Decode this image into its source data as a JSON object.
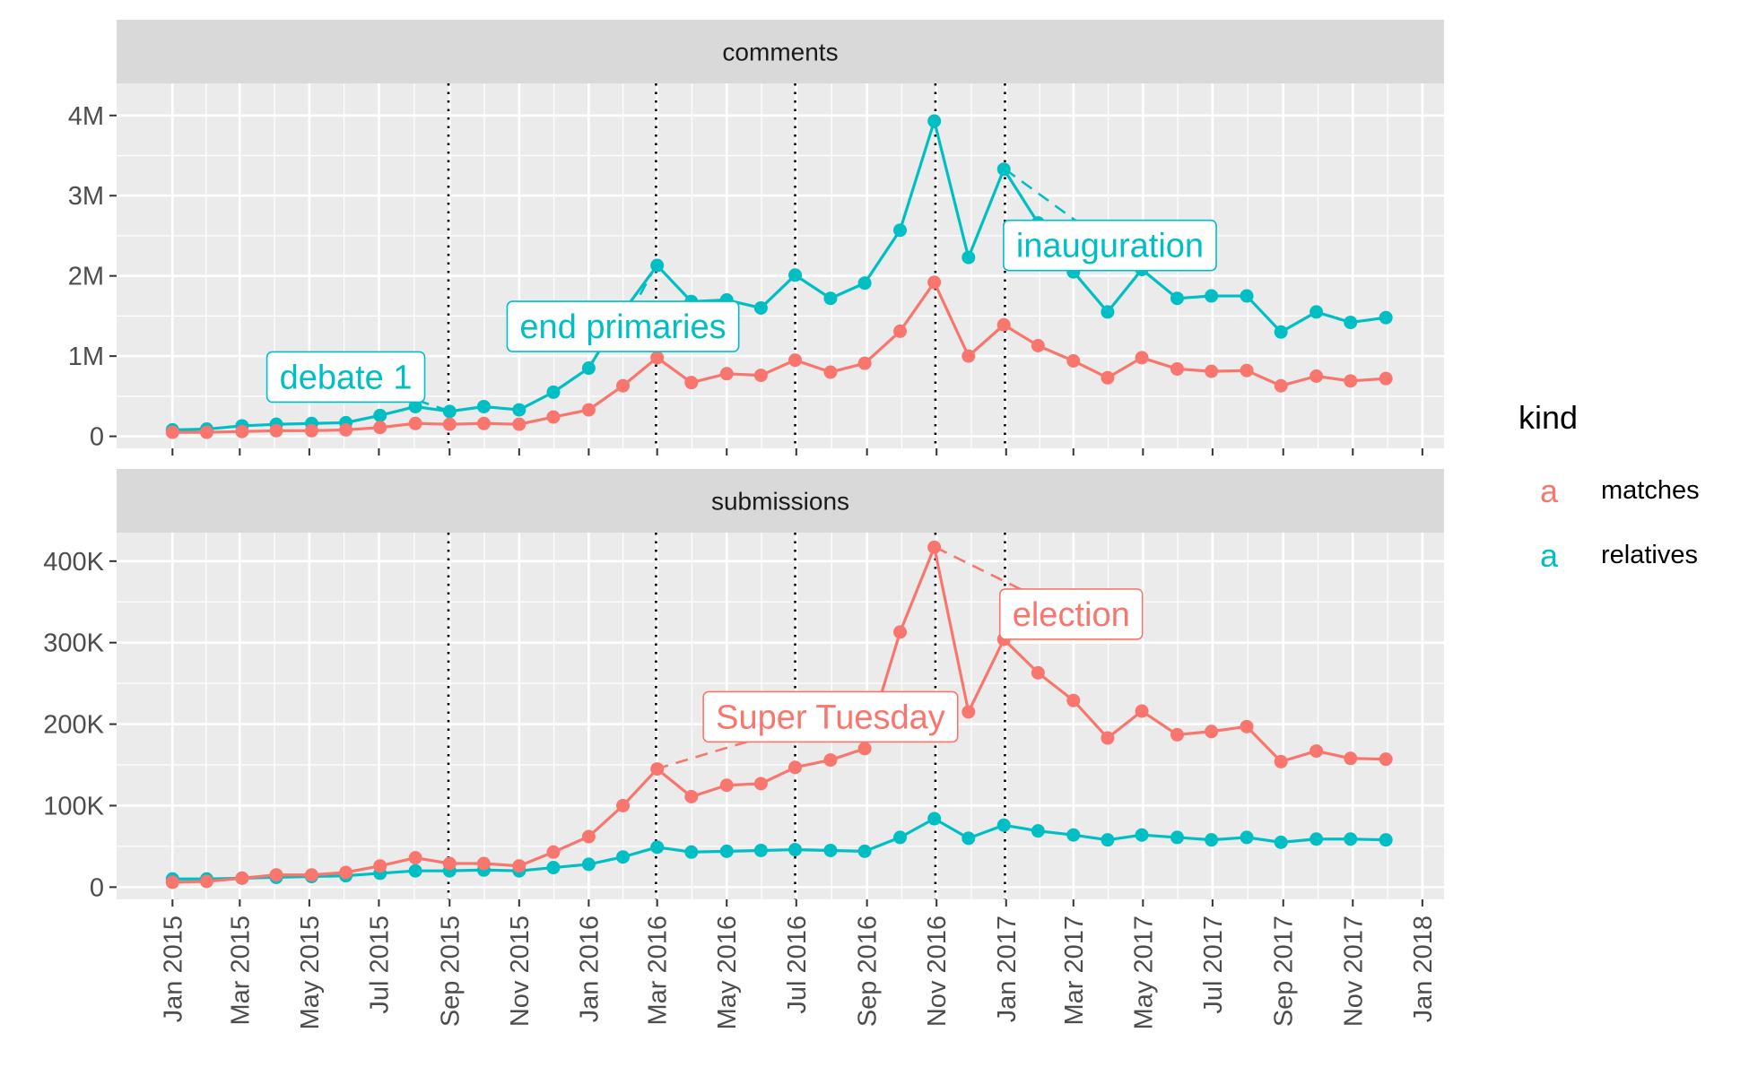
{
  "chart_data": {
    "type": "line",
    "x_range": [
      "2014-11-13",
      "2018-01-20"
    ],
    "x_ticks": [
      "2015-01-01",
      "2015-03-01",
      "2015-05-01",
      "2015-07-01",
      "2015-09-01",
      "2015-11-01",
      "2016-01-01",
      "2016-03-01",
      "2016-05-01",
      "2016-07-01",
      "2016-09-01",
      "2016-11-01",
      "2017-01-01",
      "2017-03-01",
      "2017-05-01",
      "2017-07-01",
      "2017-09-01",
      "2017-11-01",
      "2018-01-01"
    ],
    "x_tick_labels": [
      "Jan 2015",
      "Mar 2015",
      "May 2015",
      "Jul 2015",
      "Sep 2015",
      "Nov 2015",
      "Jan 2016",
      "Mar 2016",
      "May 2016",
      "Jul 2016",
      "Sep 2016",
      "Nov 2016",
      "Jan 2017",
      "Mar 2017",
      "May 2017",
      "Jul 2017",
      "Sep 2017",
      "Nov 2017",
      "Jan 2018"
    ],
    "event_lines": [
      "2015-08-31",
      "2016-02-29",
      "2016-06-30",
      "2016-10-31",
      "2016-12-31"
    ],
    "grid": true,
    "legend": {
      "title": "kind",
      "placement": "right",
      "key_glyph": "a",
      "entries": [
        {
          "label": "matches",
          "color": "#F8766D"
        },
        {
          "label": "relatives",
          "color": "#00BFC4"
        }
      ]
    },
    "x": [
      "2015-01-01",
      "2015-01-31",
      "2015-03-03",
      "2015-04-02",
      "2015-05-03",
      "2015-06-02",
      "2015-07-02",
      "2015-08-02",
      "2015-09-01",
      "2015-10-01",
      "2015-11-01",
      "2015-12-01",
      "2016-01-01",
      "2016-01-31",
      "2016-03-01",
      "2016-03-31",
      "2016-05-01",
      "2016-05-31",
      "2016-06-30",
      "2016-07-31",
      "2016-08-30",
      "2016-09-30",
      "2016-10-30",
      "2016-11-29",
      "2016-12-30",
      "2017-01-29",
      "2017-03-01",
      "2017-03-31",
      "2017-04-30",
      "2017-05-31",
      "2017-06-30",
      "2017-07-31",
      "2017-08-30",
      "2017-09-30",
      "2017-10-30",
      "2017-11-30"
    ],
    "panels": [
      {
        "strip": "comments",
        "ylim": [
          -150000,
          4400000
        ],
        "y_ticks": [
          0,
          1000000,
          2000000,
          3000000,
          4000000
        ],
        "y_tick_labels": [
          "0",
          "1M",
          "2M",
          "3M",
          "4M"
        ],
        "series": [
          {
            "name": "relatives",
            "color": "#00BFC4",
            "values": [
              80000,
              90000,
              130000,
              150000,
              160000,
              170000,
              260000,
              370000,
              310000,
              370000,
              330000,
              550000,
              850000,
              1550000,
              2130000,
              1680000,
              1700000,
              1600000,
              2010000,
              1720000,
              1910000,
              2570000,
              3930000,
              2230000,
              3330000,
              2660000,
              2050000,
              1550000,
              2080000,
              1720000,
              1750000,
              1750000,
              1300000,
              1550000,
              1420000,
              1480000
            ]
          },
          {
            "name": "matches",
            "color": "#F8766D",
            "values": [
              50000,
              50000,
              60000,
              70000,
              70000,
              80000,
              110000,
              160000,
              150000,
              160000,
              150000,
              240000,
              330000,
              630000,
              980000,
              670000,
              780000,
              760000,
              950000,
              800000,
              910000,
              1310000,
              1920000,
              1000000,
              1390000,
              1130000,
              940000,
              730000,
              980000,
              840000,
              810000,
              820000,
              630000,
              750000,
              690000,
              720000
            ]
          }
        ],
        "annotations": [
          {
            "label": "debate 1",
            "color": "#00BFC4",
            "point_x": "2015-08-31",
            "point_y": 320000,
            "label_x": "2015-06-02",
            "label_y": 740000
          },
          {
            "label": "end primaries",
            "color": "#00BFC4",
            "point_x": "2016-02-29",
            "point_y": 2130000,
            "label_x": "2016-01-31",
            "label_y": 1370000
          },
          {
            "label": "inauguration",
            "color": "#00BFC4",
            "point_x": "2016-12-31",
            "point_y": 3330000,
            "label_x": "2017-04-02",
            "label_y": 2380000
          }
        ]
      },
      {
        "strip": "submissions",
        "ylim": [
          -15000,
          435000
        ],
        "y_ticks": [
          0,
          100000,
          200000,
          300000,
          400000
        ],
        "y_tick_labels": [
          "0",
          "100K",
          "200K",
          "300K",
          "400K"
        ],
        "series": [
          {
            "name": "relatives",
            "color": "#00BFC4",
            "values": [
              10000,
              10000,
              11000,
              12000,
              13000,
              14000,
              17000,
              20000,
              20000,
              21000,
              20000,
              24000,
              28000,
              37000,
              49000,
              43000,
              44000,
              45000,
              46000,
              45000,
              44000,
              61000,
              84000,
              60000,
              76000,
              69000,
              64000,
              58000,
              64000,
              61000,
              58000,
              61000,
              55000,
              59000,
              59000,
              58000
            ]
          },
          {
            "name": "matches",
            "color": "#F8766D",
            "values": [
              6000,
              7000,
              11000,
              15000,
              15000,
              18000,
              26000,
              36000,
              29000,
              29000,
              26000,
              43000,
              62000,
              100000,
              145000,
              111000,
              125000,
              127000,
              147000,
              156000,
              170000,
              313000,
              417000,
              215000,
              304000,
              263000,
              229000,
              183000,
              216000,
              187000,
              191000,
              197000,
              154000,
              167000,
              158000,
              157000
            ]
          }
        ],
        "annotations": [
          {
            "label": "Super Tuesday",
            "color": "#F8766D",
            "point_x": "2016-02-29",
            "point_y": 145000,
            "label_x": "2016-07-31",
            "label_y": 209000
          },
          {
            "label": "election",
            "color": "#F8766D",
            "point_x": "2016-10-31",
            "point_y": 417000,
            "label_x": "2017-02-27",
            "label_y": 335000
          }
        ]
      }
    ]
  }
}
